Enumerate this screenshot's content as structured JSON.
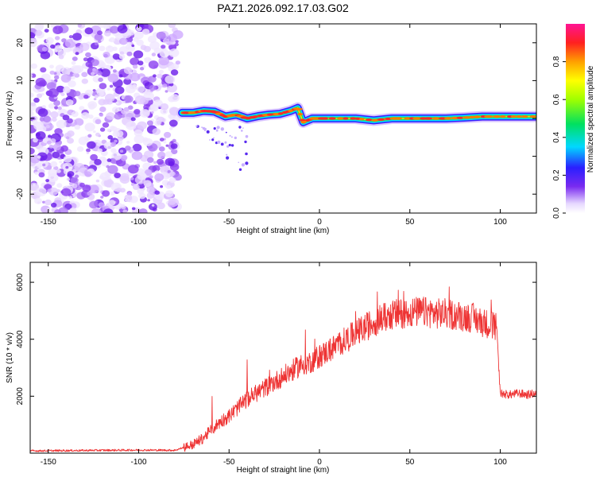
{
  "figure_title": "PAZ1.2026.092.17.03.G02",
  "chart_data": [
    {
      "type": "heatmap",
      "title": "PAZ1.2026.092.17.03.G02",
      "xlabel": "Height of straight line (km)",
      "ylabel": "Frequency (Hz)",
      "xlim": [
        -160,
        120
      ],
      "ylim": [
        -25,
        25
      ],
      "xticks": [
        -150,
        -100,
        -50,
        0,
        50,
        100
      ],
      "yticks": [
        -20,
        -10,
        0,
        10,
        20
      ],
      "xtick_labels": [
        "-150",
        "-100",
        "-50",
        "0",
        "50",
        "100"
      ],
      "ytick_labels": [
        "-20",
        "-10",
        "0",
        "10",
        "20"
      ],
      "noise_region_x": [
        -160,
        -78
      ],
      "signal_track": {
        "x": [
          -76,
          -70,
          -64,
          -58,
          -52,
          -46,
          -40,
          -34,
          -28,
          -22,
          -16,
          -12,
          -9,
          -4,
          0,
          10,
          20,
          30,
          40,
          50,
          60,
          70,
          80,
          90,
          100,
          110,
          120
        ],
        "freq": [
          1.5,
          1.5,
          2.0,
          1.8,
          0.5,
          1.0,
          0.0,
          0.6,
          1.0,
          1.2,
          2.0,
          2.8,
          -1.0,
          0.0,
          0.0,
          0.0,
          0.0,
          -0.5,
          0.0,
          0.0,
          0.0,
          0.0,
          0.2,
          0.5,
          0.5,
          0.5,
          0.5
        ]
      },
      "colorbar": {
        "label": "Normalized spectral amplitude",
        "range": [
          0.0,
          1.0
        ],
        "ticks": [
          0.0,
          0.2,
          0.4,
          0.6,
          0.8
        ],
        "tick_labels": [
          "0.0",
          "0.2",
          "0.4",
          "0.6",
          "0.8"
        ]
      }
    },
    {
      "type": "line",
      "title": "",
      "xlabel": "Height of straight line (km)",
      "ylabel": "SNR (10 * v/v)",
      "xlim": [
        -160,
        120
      ],
      "ylim": [
        0,
        6700
      ],
      "xticks": [
        -150,
        -100,
        -50,
        0,
        50,
        100
      ],
      "yticks": [
        2000,
        4000,
        6000
      ],
      "xtick_labels": [
        "-150",
        "-100",
        "-50",
        "0",
        "50",
        "100"
      ],
      "ytick_labels": [
        "2000",
        "4000",
        "6000"
      ],
      "series": [
        {
          "name": "SNR",
          "color": "#ee3333",
          "x": [
            -160,
            -140,
            -120,
            -100,
            -80,
            -75,
            -70,
            -65,
            -60,
            -55,
            -50,
            -45,
            -40,
            -35,
            -30,
            -25,
            -20,
            -15,
            -10,
            -5,
            0,
            5,
            10,
            15,
            20,
            25,
            30,
            35,
            40,
            45,
            50,
            55,
            60,
            65,
            70,
            75,
            80,
            85,
            90,
            95,
            98,
            100,
            105,
            110,
            115,
            120
          ],
          "y": [
            80,
            90,
            100,
            110,
            100,
            200,
            300,
            500,
            800,
            1100,
            1300,
            1600,
            1900,
            2100,
            2300,
            2500,
            2700,
            2900,
            3100,
            3200,
            3400,
            3600,
            3800,
            4000,
            4200,
            4400,
            4600,
            4750,
            4850,
            4900,
            4950,
            4950,
            4950,
            4900,
            4900,
            4850,
            4800,
            4750,
            4600,
            4500,
            4400,
            2100,
            2050,
            2100,
            2050,
            2100
          ]
        }
      ]
    }
  ],
  "colors": {
    "line": "#ee3333",
    "noise": "#7a2bf0"
  }
}
